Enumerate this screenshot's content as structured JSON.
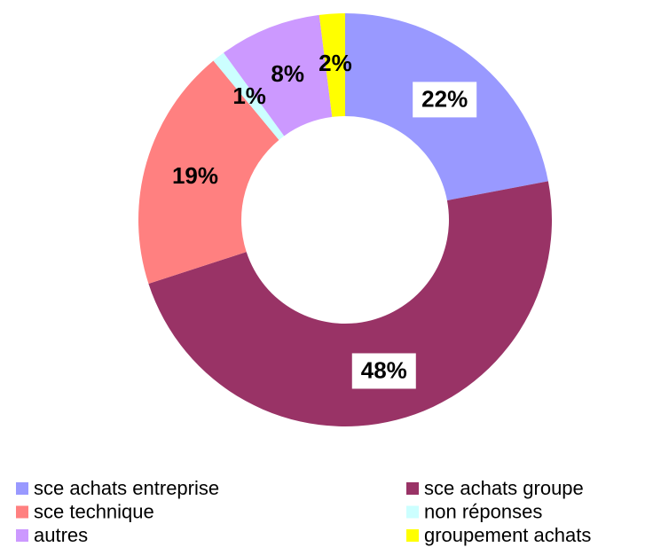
{
  "chart_data": {
    "type": "donut",
    "categories": [
      "sce achats entreprise",
      "sce achats groupe",
      "sce technique",
      "non réponses",
      "autres",
      "groupement achats"
    ],
    "values": [
      22,
      48,
      19,
      1,
      8,
      2
    ],
    "value_labels": [
      "22%",
      "48%",
      "19%",
      "1%",
      "8%",
      "2%"
    ],
    "colors": [
      "#9999ff",
      "#993366",
      "#ff8080",
      "#ccffff",
      "#cc99ff",
      "#ffff00"
    ],
    "legend": "bottom"
  }
}
